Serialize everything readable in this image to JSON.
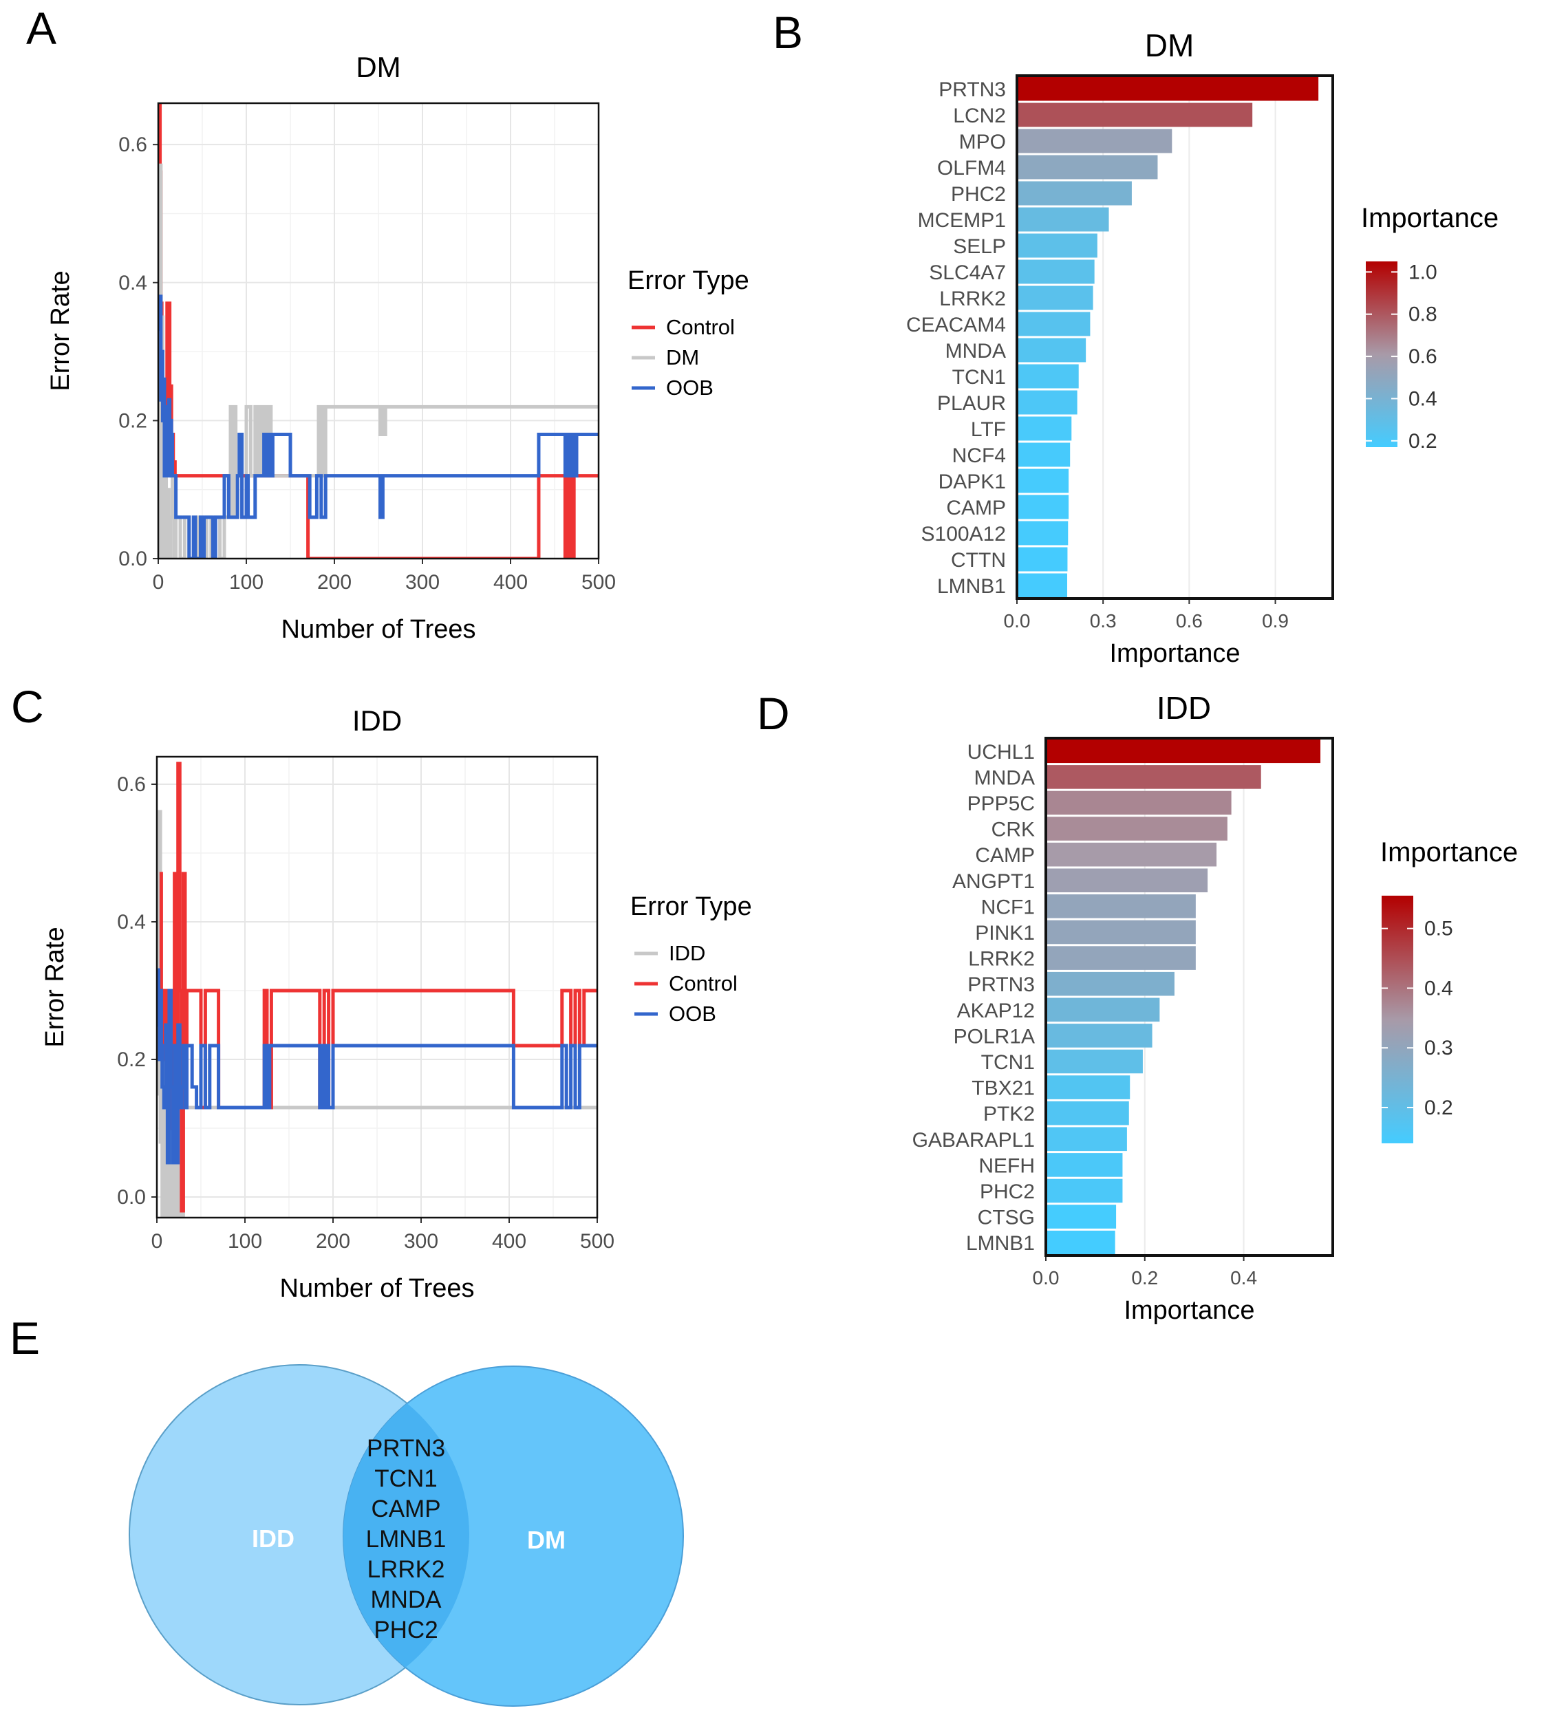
{
  "panels": {
    "A": "A",
    "B": "B",
    "C": "C",
    "D": "D",
    "E": "E"
  },
  "chart_data": [
    {
      "id": "A",
      "type": "line",
      "title": "DM",
      "xlabel": "Number of Trees",
      "ylabel": "Error Rate",
      "xlim": [
        0,
        500
      ],
      "ylim": [
        0,
        0.66
      ],
      "xticks": [
        0,
        100,
        200,
        300,
        400,
        500
      ],
      "xtick_labels": [
        "0",
        "100",
        "200",
        "300",
        "400",
        "500"
      ],
      "yticks": [
        0.0,
        0.2,
        0.4,
        0.6
      ],
      "ytick_labels": [
        "0.0",
        "0.2",
        "0.4",
        "0.6"
      ],
      "legend_title": "Error Type",
      "legend_position": "right",
      "series": [
        {
          "name": "Control",
          "color": "#ee3333",
          "x": [
            1,
            2,
            3,
            4,
            5,
            6,
            7,
            8,
            9,
            10,
            11,
            12,
            13,
            14,
            15,
            16,
            17,
            18,
            19,
            20,
            22,
            25,
            30,
            40,
            50,
            55,
            60,
            65,
            70,
            80,
            90,
            95,
            100,
            110,
            115,
            120,
            125,
            130,
            140,
            150,
            160,
            168,
            170,
            200,
            250,
            300,
            350,
            400,
            420,
            430,
            432,
            440,
            450,
            455,
            460,
            462,
            464,
            466,
            468,
            470,
            472,
            475,
            480,
            500
          ],
          "y": [
            0.66,
            0.56,
            0.37,
            0.3,
            0.22,
            0.16,
            0.12,
            0.15,
            0.2,
            0.37,
            0.22,
            0.37,
            0.18,
            0.25,
            0.12,
            0.18,
            0.12,
            0.14,
            0.12,
            0.12,
            0.12,
            0.12,
            0.12,
            0.12,
            0.12,
            0.12,
            0.12,
            0.12,
            0.12,
            0.12,
            0.12,
            0.12,
            0.12,
            0.12,
            0.12,
            0.12,
            0.12,
            0.12,
            0.12,
            0.12,
            0.12,
            0.12,
            0.0,
            0.0,
            0.0,
            0.0,
            0.0,
            0.0,
            0.0,
            0.0,
            0.12,
            0.12,
            0.12,
            0.12,
            0.12,
            0.0,
            0.12,
            0.0,
            0.12,
            0.0,
            0.12,
            0.12,
            0.12,
            0.12
          ]
        },
        {
          "name": "DM",
          "color": "#c8c8c8",
          "x": [
            1,
            2,
            3,
            4,
            5,
            6,
            7,
            8,
            9,
            10,
            12,
            14,
            16,
            18,
            20,
            25,
            30,
            35,
            40,
            45,
            50,
            55,
            60,
            65,
            70,
            75,
            80,
            82,
            84,
            86,
            88,
            90,
            95,
            100,
            105,
            110,
            112,
            114,
            116,
            118,
            120,
            122,
            124,
            126,
            128,
            130,
            135,
            140,
            150,
            160,
            170,
            180,
            182,
            184,
            186,
            188,
            190,
            192,
            200,
            210,
            220,
            230,
            240,
            250,
            252,
            254,
            256,
            258,
            260,
            300,
            350,
            400,
            450,
            500
          ],
          "y": [
            0.0,
            0.57,
            0.0,
            0.35,
            0.0,
            0.2,
            0.0,
            0.15,
            0.0,
            0.1,
            0.0,
            0.06,
            0.12,
            0.0,
            0.06,
            0.0,
            0.06,
            0.0,
            0.0,
            0.06,
            0.0,
            0.06,
            0.0,
            0.06,
            0.0,
            0.06,
            0.06,
            0.22,
            0.06,
            0.22,
            0.06,
            0.12,
            0.06,
            0.22,
            0.12,
            0.22,
            0.12,
            0.22,
            0.12,
            0.22,
            0.12,
            0.22,
            0.12,
            0.22,
            0.12,
            0.12,
            0.12,
            0.12,
            0.12,
            0.12,
            0.12,
            0.12,
            0.22,
            0.12,
            0.22,
            0.12,
            0.22,
            0.22,
            0.22,
            0.22,
            0.22,
            0.22,
            0.22,
            0.22,
            0.18,
            0.22,
            0.18,
            0.22,
            0.22,
            0.22,
            0.22,
            0.22,
            0.22,
            0.22
          ]
        },
        {
          "name": "OOB",
          "color": "#3366cc",
          "x": [
            1,
            2,
            3,
            4,
            5,
            6,
            7,
            8,
            9,
            10,
            11,
            12,
            13,
            14,
            15,
            16,
            17,
            18,
            20,
            22,
            25,
            30,
            35,
            40,
            42,
            45,
            48,
            50,
            52,
            55,
            60,
            62,
            65,
            70,
            75,
            80,
            85,
            90,
            92,
            95,
            100,
            102,
            105,
            110,
            115,
            120,
            122,
            125,
            128,
            130,
            135,
            140,
            150,
            160,
            170,
            172,
            175,
            180,
            185,
            190,
            200,
            250,
            252,
            255,
            258,
            260,
            300,
            350,
            400,
            430,
            432,
            440,
            450,
            460,
            462,
            465,
            468,
            470,
            472,
            475,
            500
          ],
          "y": [
            0.33,
            0.38,
            0.23,
            0.3,
            0.2,
            0.26,
            0.12,
            0.18,
            0.22,
            0.12,
            0.18,
            0.23,
            0.12,
            0.2,
            0.18,
            0.12,
            0.12,
            0.12,
            0.06,
            0.06,
            0.06,
            0.06,
            0.0,
            0.06,
            0.0,
            0.0,
            0.06,
            0.0,
            0.06,
            0.06,
            0.06,
            0.0,
            0.06,
            0.06,
            0.12,
            0.06,
            0.06,
            0.12,
            0.18,
            0.06,
            0.12,
            0.06,
            0.06,
            0.12,
            0.12,
            0.18,
            0.12,
            0.18,
            0.12,
            0.18,
            0.18,
            0.18,
            0.12,
            0.12,
            0.12,
            0.06,
            0.06,
            0.12,
            0.06,
            0.12,
            0.12,
            0.12,
            0.06,
            0.12,
            0.12,
            0.12,
            0.12,
            0.12,
            0.12,
            0.12,
            0.18,
            0.18,
            0.18,
            0.18,
            0.12,
            0.18,
            0.12,
            0.18,
            0.12,
            0.18,
            0.18
          ]
        }
      ]
    },
    {
      "id": "B",
      "type": "bar",
      "orientation": "horizontal",
      "title": "DM",
      "xlabel": "Importance",
      "ylabel": "",
      "xlim": [
        0,
        1.1
      ],
      "xticks": [
        0.0,
        0.3,
        0.6,
        0.9
      ],
      "xtick_labels": [
        "0.0",
        "0.3",
        "0.6",
        "0.9"
      ],
      "legend_title": "Importance",
      "colorbar_range": [
        0.17,
        1.05
      ],
      "colorbar_ticks": [
        0.2,
        0.4,
        0.6,
        0.8,
        1.0
      ],
      "colorbar_tick_labels": [
        "0.2",
        "0.4",
        "0.6",
        "0.8",
        "1.0"
      ],
      "low_color": "#44ccff",
      "high_color": "#b30000",
      "categories": [
        "PRTN3",
        "LCN2",
        "MPO",
        "OLFM4",
        "PHC2",
        "MCEMP1",
        "SELP",
        "SLC4A7",
        "LRRK2",
        "CEACAM4",
        "MNDA",
        "TCN1",
        "PLAUR",
        "LTF",
        "NCF4",
        "DAPK1",
        "CAMP",
        "S100A12",
        "CTTN",
        "LMNB1"
      ],
      "values": [
        1.05,
        0.82,
        0.54,
        0.49,
        0.4,
        0.32,
        0.28,
        0.27,
        0.265,
        0.255,
        0.24,
        0.215,
        0.21,
        0.19,
        0.185,
        0.18,
        0.18,
        0.178,
        0.176,
        0.175
      ]
    },
    {
      "id": "C",
      "type": "line",
      "title": "IDD",
      "xlabel": "Number of Trees",
      "ylabel": "Error Rate",
      "xlim": [
        0,
        500
      ],
      "ylim": [
        -0.03,
        0.64
      ],
      "xticks": [
        0,
        100,
        200,
        300,
        400,
        500
      ],
      "xtick_labels": [
        "0",
        "100",
        "200",
        "300",
        "400",
        "500"
      ],
      "yticks": [
        0.0,
        0.2,
        0.4,
        0.6
      ],
      "ytick_labels": [
        "0.0",
        "0.2",
        "0.4",
        "0.6"
      ],
      "legend_title": "Error Type",
      "legend_position": "right",
      "series": [
        {
          "name": "IDD",
          "color": "#c8c8c8",
          "x": [
            1,
            2,
            3,
            4,
            5,
            6,
            7,
            8,
            9,
            10,
            11,
            12,
            14,
            16,
            18,
            20,
            22,
            24,
            26,
            28,
            30,
            32,
            35,
            40,
            50,
            60,
            80,
            100,
            150,
            200,
            300,
            400,
            500
          ],
          "y": [
            0.46,
            0.15,
            0.56,
            0.08,
            0.3,
            -0.03,
            0.2,
            -0.03,
            0.25,
            -0.03,
            0.3,
            -0.03,
            0.2,
            -0.03,
            0.3,
            -0.03,
            0.25,
            -0.03,
            0.3,
            -0.03,
            0.2,
            0.13,
            0.13,
            0.13,
            0.13,
            0.13,
            0.13,
            0.13,
            0.13,
            0.13,
            0.13,
            0.13,
            0.13
          ]
        },
        {
          "name": "Control",
          "color": "#ee3333",
          "x": [
            3,
            5,
            8,
            10,
            12,
            14,
            16,
            18,
            20,
            22,
            24,
            26,
            28,
            30,
            32,
            34,
            36,
            38,
            40,
            45,
            50,
            55,
            60,
            65,
            70,
            80,
            100,
            110,
            120,
            122,
            125,
            130,
            135,
            140,
            145,
            150,
            160,
            180,
            185,
            190,
            195,
            200,
            205,
            210,
            250,
            300,
            350,
            400,
            405,
            410,
            450,
            460,
            465,
            470,
            475,
            480,
            485,
            490,
            500
          ],
          "y": [
            0.47,
            0.3,
            0.2,
            0.3,
            0.2,
            0.1,
            0.3,
            0.1,
            0.47,
            0.2,
            0.63,
            0.3,
            -0.02,
            0.47,
            0.13,
            0.3,
            0.3,
            0.3,
            0.3,
            0.3,
            0.13,
            0.3,
            0.3,
            0.3,
            0.13,
            0.13,
            0.13,
            0.13,
            0.13,
            0.3,
            0.13,
            0.3,
            0.3,
            0.3,
            0.3,
            0.3,
            0.3,
            0.3,
            0.13,
            0.3,
            0.13,
            0.3,
            0.3,
            0.3,
            0.3,
            0.3,
            0.3,
            0.3,
            0.22,
            0.22,
            0.22,
            0.3,
            0.3,
            0.22,
            0.3,
            0.22,
            0.3,
            0.3,
            0.3
          ]
        },
        {
          "name": "OOB",
          "color": "#3366cc",
          "x": [
            1,
            2,
            3,
            4,
            5,
            6,
            8,
            10,
            12,
            14,
            16,
            18,
            20,
            22,
            24,
            26,
            28,
            30,
            32,
            34,
            36,
            38,
            40,
            45,
            50,
            55,
            60,
            65,
            70,
            75,
            80,
            100,
            120,
            122,
            125,
            128,
            130,
            135,
            140,
            180,
            185,
            188,
            190,
            192,
            195,
            200,
            250,
            300,
            350,
            400,
            405,
            410,
            450,
            455,
            460,
            465,
            470,
            475,
            480,
            490,
            500
          ],
          "y": [
            0.33,
            0.25,
            0.2,
            0.3,
            0.22,
            0.16,
            0.13,
            0.25,
            0.05,
            0.3,
            0.16,
            0.05,
            0.22,
            0.05,
            0.25,
            0.13,
            0.16,
            0.22,
            0.13,
            0.22,
            0.22,
            0.22,
            0.16,
            0.13,
            0.22,
            0.13,
            0.22,
            0.22,
            0.13,
            0.13,
            0.13,
            0.13,
            0.13,
            0.22,
            0.13,
            0.22,
            0.22,
            0.22,
            0.22,
            0.22,
            0.13,
            0.22,
            0.13,
            0.22,
            0.13,
            0.22,
            0.22,
            0.22,
            0.22,
            0.22,
            0.13,
            0.13,
            0.13,
            0.13,
            0.22,
            0.13,
            0.22,
            0.13,
            0.22,
            0.22,
            0.22
          ]
        }
      ]
    },
    {
      "id": "D",
      "type": "bar",
      "orientation": "horizontal",
      "title": "IDD",
      "xlabel": "Importance",
      "ylabel": "",
      "xlim": [
        0,
        0.58
      ],
      "xticks": [
        0.0,
        0.2,
        0.4
      ],
      "xtick_labels": [
        "0.0",
        "0.2",
        "0.4"
      ],
      "legend_title": "Importance",
      "colorbar_range": [
        0.14,
        0.555
      ],
      "colorbar_ticks": [
        0.2,
        0.3,
        0.4,
        0.5
      ],
      "colorbar_tick_labels": [
        "0.2",
        "0.3",
        "0.4",
        "0.5"
      ],
      "low_color": "#44ccff",
      "high_color": "#b30000",
      "categories": [
        "UCHL1",
        "MNDA",
        "PPP5C",
        "CRK",
        "CAMP",
        "ANGPT1",
        "NCF1",
        "PINK1",
        "LRRK2",
        "PRTN3",
        "AKAP12",
        "POLR1A",
        "TCN1",
        "TBX21",
        "PTK2",
        "GABARAPL1",
        "NEFH",
        "PHC2",
        "CTSG",
        "LMNB1"
      ],
      "values": [
        0.555,
        0.435,
        0.375,
        0.367,
        0.345,
        0.327,
        0.303,
        0.303,
        0.303,
        0.26,
        0.23,
        0.215,
        0.196,
        0.17,
        0.168,
        0.164,
        0.155,
        0.155,
        0.142,
        0.14
      ]
    }
  ],
  "venn": {
    "left_label": "IDD",
    "right_label": "DM",
    "left_color": "#9ed8fb",
    "right_color": "#64c5fa",
    "overlap_color": "#48b2f2",
    "shared_genes": [
      "PRTN3",
      "TCN1",
      "CAMP",
      "LMNB1",
      "LRRK2",
      "MNDA",
      "PHC2"
    ]
  }
}
